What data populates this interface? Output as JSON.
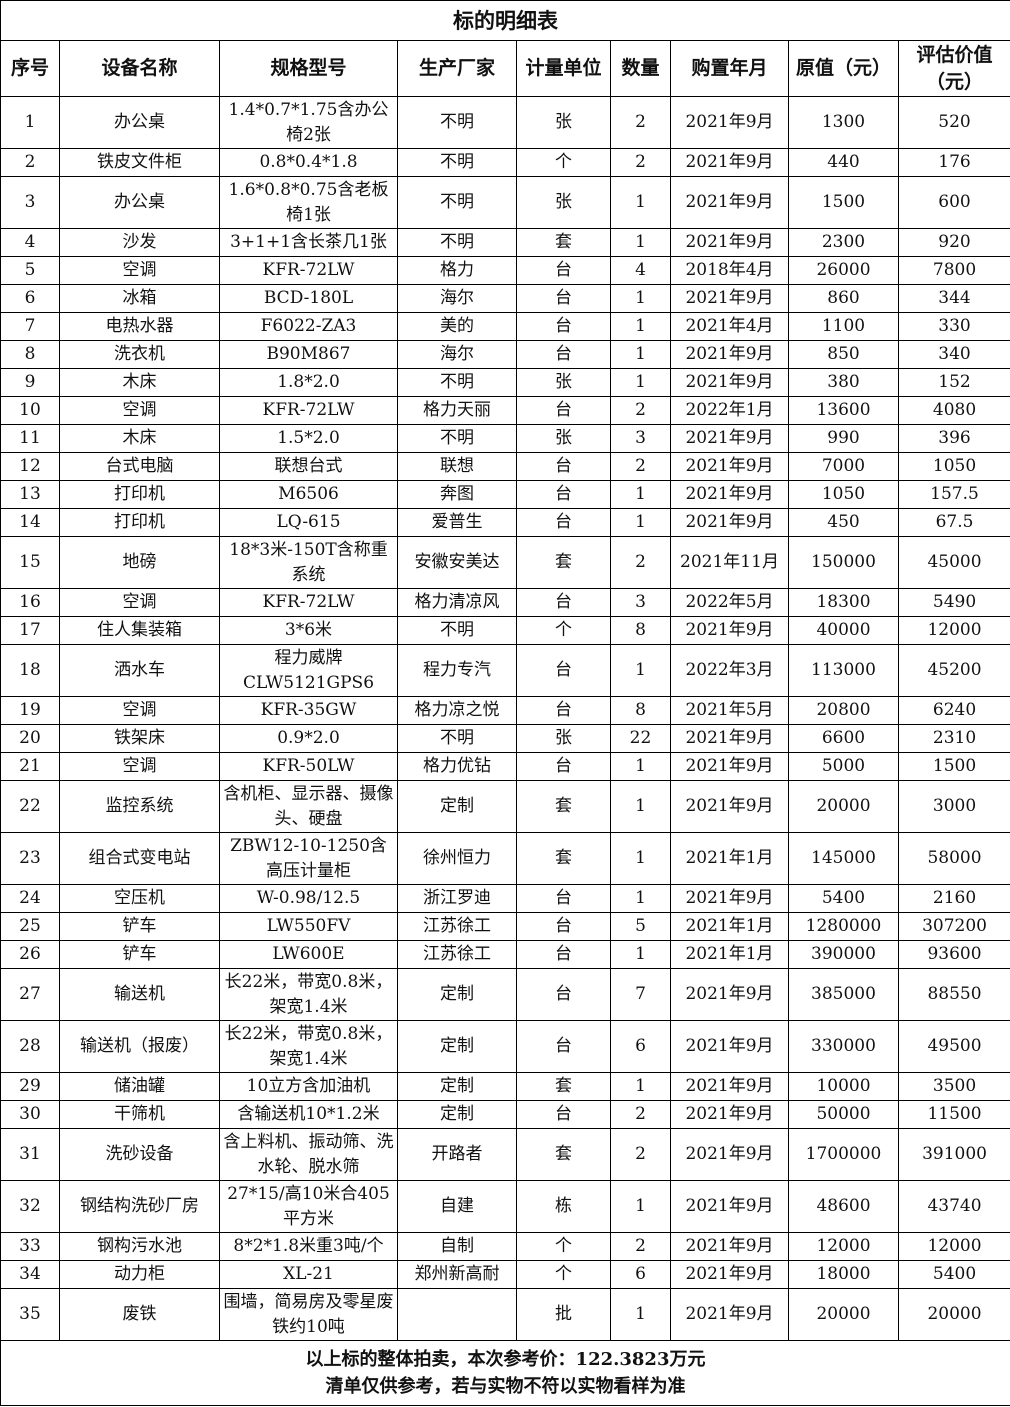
{
  "title": "标的明细表",
  "headers": [
    "序号",
    "设备名称",
    "规格型号",
    "生产厂家",
    "计量单位",
    "数量",
    "购置年月",
    "原值（元）",
    "评估价值（元）"
  ],
  "rows": [
    [
      "1",
      "办公桌",
      "1.4*0.7*1.75含办公椅2张",
      "不明",
      "张",
      "2",
      "2021年9月",
      "1300",
      "520"
    ],
    [
      "2",
      "铁皮文件柜",
      "0.8*0.4*1.8",
      "不明",
      "个",
      "2",
      "2021年9月",
      "440",
      "176"
    ],
    [
      "3",
      "办公桌",
      "1.6*0.8*0.75含老板椅1张",
      "不明",
      "张",
      "1",
      "2021年9月",
      "1500",
      "600"
    ],
    [
      "4",
      "沙发",
      "3+1+1含长茶几1张",
      "不明",
      "套",
      "1",
      "2021年9月",
      "2300",
      "920"
    ],
    [
      "5",
      "空调",
      "KFR-72LW",
      "格力",
      "台",
      "4",
      "2018年4月",
      "26000",
      "7800"
    ],
    [
      "6",
      "冰箱",
      "BCD-180L",
      "海尔",
      "台",
      "1",
      "2021年9月",
      "860",
      "344"
    ],
    [
      "7",
      "电热水器",
      "F6022-ZA3",
      "美的",
      "台",
      "1",
      "2021年4月",
      "1100",
      "330"
    ],
    [
      "8",
      "洗衣机",
      "B90M867",
      "海尔",
      "台",
      "1",
      "2021年9月",
      "850",
      "340"
    ],
    [
      "9",
      "木床",
      "1.8*2.0",
      "不明",
      "张",
      "1",
      "2021年9月",
      "380",
      "152"
    ],
    [
      "10",
      "空调",
      "KFR-72LW",
      "格力天丽",
      "台",
      "2",
      "2022年1月",
      "13600",
      "4080"
    ],
    [
      "11",
      "木床",
      "1.5*2.0",
      "不明",
      "张",
      "3",
      "2021年9月",
      "990",
      "396"
    ],
    [
      "12",
      "台式电脑",
      "联想台式",
      "联想",
      "台",
      "2",
      "2021年9月",
      "7000",
      "1050"
    ],
    [
      "13",
      "打印机",
      "M6506",
      "奔图",
      "台",
      "1",
      "2021年9月",
      "1050",
      "157.5"
    ],
    [
      "14",
      "打印机",
      "LQ-615",
      "爱普生",
      "台",
      "1",
      "2021年9月",
      "450",
      "67.5"
    ],
    [
      "15",
      "地磅",
      "18*3米-150T含称重系统",
      "安徽安美达",
      "套",
      "2",
      "2021年11月",
      "150000",
      "45000"
    ],
    [
      "16",
      "空调",
      "KFR-72LW",
      "格力清凉风",
      "台",
      "3",
      "2022年5月",
      "18300",
      "5490"
    ],
    [
      "17",
      "住人集装箱",
      "3*6米",
      "不明",
      "个",
      "8",
      "2021年9月",
      "40000",
      "12000"
    ],
    [
      "18",
      "洒水车",
      "程力威牌CLW5121GPS6",
      "程力专汽",
      "台",
      "1",
      "2022年3月",
      "113000",
      "45200"
    ],
    [
      "19",
      "空调",
      "KFR-35GW",
      "格力凉之悦",
      "台",
      "8",
      "2021年5月",
      "20800",
      "6240"
    ],
    [
      "20",
      "铁架床",
      "0.9*2.0",
      "不明",
      "张",
      "22",
      "2021年9月",
      "6600",
      "2310"
    ],
    [
      "21",
      "空调",
      "KFR-50LW",
      "格力优钻",
      "台",
      "1",
      "2021年9月",
      "5000",
      "1500"
    ],
    [
      "22",
      "监控系统",
      "含机柜、显示器、摄像头、硬盘",
      "定制",
      "套",
      "1",
      "2021年9月",
      "20000",
      "3000"
    ],
    [
      "23",
      "组合式变电站",
      "ZBW12-10-1250含高压计量柜",
      "徐州恒力",
      "套",
      "1",
      "2021年1月",
      "145000",
      "58000"
    ],
    [
      "24",
      "空压机",
      "W-0.98/12.5",
      "浙江罗迪",
      "台",
      "1",
      "2021年9月",
      "5400",
      "2160"
    ],
    [
      "25",
      "铲车",
      "LW550FV",
      "江苏徐工",
      "台",
      "5",
      "2021年1月",
      "1280000",
      "307200"
    ],
    [
      "26",
      "铲车",
      "LW600E",
      "江苏徐工",
      "台",
      "1",
      "2021年1月",
      "390000",
      "93600"
    ],
    [
      "27",
      "输送机",
      "长22米，带宽0.8米，架宽1.4米",
      "定制",
      "台",
      "7",
      "2021年9月",
      "385000",
      "88550"
    ],
    [
      "28",
      "输送机（报废）",
      "长22米，带宽0.8米，架宽1.4米",
      "定制",
      "台",
      "6",
      "2021年9月",
      "330000",
      "49500"
    ],
    [
      "29",
      "储油罐",
      "10立方含加油机",
      "定制",
      "套",
      "1",
      "2021年9月",
      "10000",
      "3500"
    ],
    [
      "30",
      "干筛机",
      "含输送机10*1.2米",
      "定制",
      "台",
      "2",
      "2021年9月",
      "50000",
      "11500"
    ],
    [
      "31",
      "洗砂设备",
      "含上料机、振动筛、洗水轮、脱水筛",
      "开路者",
      "套",
      "2",
      "2021年9月",
      "1700000",
      "391000"
    ],
    [
      "32",
      "钢结构洗砂厂房",
      "27*15/高10米合405平方米",
      "自建",
      "栋",
      "1",
      "2021年9月",
      "48600",
      "43740"
    ],
    [
      "33",
      "钢构污水池",
      "8*2*1.8米重3吨/个",
      "自制",
      "个",
      "2",
      "2021年9月",
      "12000",
      "12000"
    ],
    [
      "34",
      "动力柜",
      "XL-21",
      "郑州新高耐",
      "个",
      "6",
      "2021年9月",
      "18000",
      "5400"
    ],
    [
      "35",
      "废铁",
      "围墙，简易房及零星废铁约10吨",
      "",
      "批",
      "1",
      "2021年9月",
      "20000",
      "20000"
    ]
  ],
  "footer": {
    "line1": "以上标的整体拍卖，本次参考价：122.3823万元",
    "line2": "清单仅供参考，若与实物不符以实物看样为准"
  }
}
